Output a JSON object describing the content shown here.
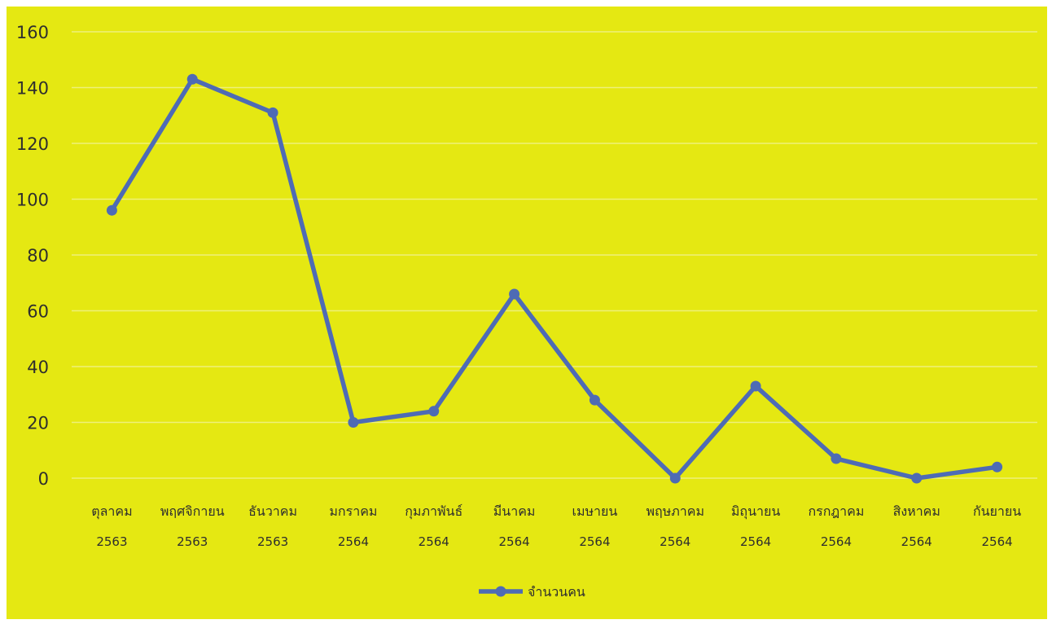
{
  "chart_data": {
    "type": "line",
    "categories": [
      [
        "ตุลาคม",
        "2563"
      ],
      [
        "พฤศจิกายน",
        "2563"
      ],
      [
        "ธันวาคม",
        "2563"
      ],
      [
        "มกราคม",
        "2564"
      ],
      [
        "กุมภาพันธ์",
        "2564"
      ],
      [
        "มีนาคม",
        "2564"
      ],
      [
        "เมษายน",
        "2564"
      ],
      [
        "พฤษภาคม",
        "2564"
      ],
      [
        "มิถุนายน",
        "2564"
      ],
      [
        "กรกฎาคม",
        "2564"
      ],
      [
        "สิงหาคม",
        "2564"
      ],
      [
        "กันยายน",
        "2564"
      ]
    ],
    "series": [
      {
        "name": "จำนวนคน",
        "values": [
          96,
          143,
          131,
          20,
          24,
          66,
          28,
          0,
          33,
          7,
          0,
          4
        ]
      }
    ],
    "title": "",
    "xlabel": "",
    "ylabel": "",
    "ylim": [
      0,
      160
    ],
    "yticks": [
      0,
      20,
      40,
      60,
      80,
      100,
      120,
      140,
      160
    ],
    "grid": true,
    "legend_position": "bottom",
    "colors": {
      "background": "#e5e812",
      "line": "#4e6bb5",
      "grid": "#eef07a",
      "text": "#2e2e2e"
    }
  }
}
